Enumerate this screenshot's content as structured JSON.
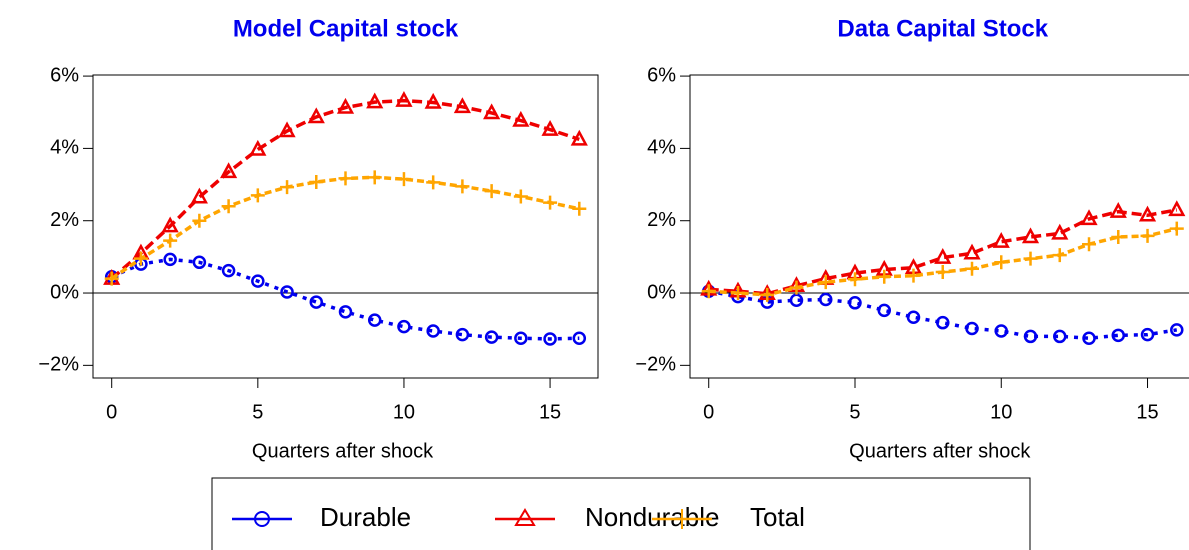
{
  "chart_data": [
    {
      "type": "line",
      "title": "Model Capital stock",
      "x_label": "Quarters after shock",
      "x": [
        0,
        1,
        2,
        3,
        4,
        5,
        6,
        7,
        8,
        9,
        10,
        11,
        12,
        13,
        14,
        15,
        16
      ],
      "xlim": [
        -0.64,
        16.64
      ],
      "xticks": [
        0,
        5,
        10,
        15
      ],
      "ylim": [
        -2.35,
        6.03
      ],
      "yticks": [
        {
          "value": -2,
          "label": "−2%"
        },
        {
          "value": 0,
          "label": "0%"
        },
        {
          "value": 2,
          "label": "2%"
        },
        {
          "value": 4,
          "label": "4%"
        },
        {
          "value": 6,
          "label": "6%"
        }
      ],
      "series": [
        {
          "name": "Durable",
          "color": "#0000ee",
          "marker": "circle",
          "values": [
            0.45,
            0.8,
            0.93,
            0.85,
            0.62,
            0.33,
            0.03,
            -0.25,
            -0.52,
            -0.75,
            -0.93,
            -1.05,
            -1.15,
            -1.22,
            -1.25,
            -1.27,
            -1.25
          ]
        },
        {
          "name": "Nondurable",
          "color": "#ee0000",
          "marker": "triangle",
          "values": [
            0.4,
            1.1,
            1.85,
            2.65,
            3.35,
            3.97,
            4.48,
            4.87,
            5.13,
            5.28,
            5.32,
            5.27,
            5.15,
            4.98,
            4.77,
            4.52,
            4.25
          ]
        },
        {
          "name": "Total",
          "color": "#ffa500",
          "marker": "plus",
          "values": [
            0.4,
            0.95,
            1.45,
            2.0,
            2.4,
            2.7,
            2.93,
            3.07,
            3.17,
            3.2,
            3.15,
            3.06,
            2.95,
            2.82,
            2.67,
            2.5,
            2.33
          ]
        }
      ]
    },
    {
      "type": "line",
      "title": "Data Capital Stock",
      "x_label": "Quarters after shock",
      "x": [
        0,
        1,
        2,
        3,
        4,
        5,
        6,
        7,
        8,
        9,
        10,
        11,
        12,
        13,
        14,
        15,
        16
      ],
      "xlim": [
        -0.64,
        16.64
      ],
      "xticks": [
        0,
        5,
        10,
        15
      ],
      "ylim": [
        -2.35,
        6.03
      ],
      "yticks": [
        {
          "value": -2,
          "label": "−2%"
        },
        {
          "value": 0,
          "label": "0%"
        },
        {
          "value": 2,
          "label": "2%"
        },
        {
          "value": 4,
          "label": "4%"
        },
        {
          "value": 6,
          "label": "6%"
        }
      ],
      "series": [
        {
          "color": "#0000ee",
          "marker": "circle",
          "values": [
            0.05,
            -0.1,
            -0.25,
            -0.2,
            -0.18,
            -0.27,
            -0.48,
            -0.67,
            -0.82,
            -0.98,
            -1.05,
            -1.2,
            -1.2,
            -1.25,
            -1.17,
            -1.15,
            -1.02
          ]
        },
        {
          "color": "#ee0000",
          "marker": "triangle",
          "values": [
            0.1,
            0.05,
            -0.02,
            0.2,
            0.4,
            0.55,
            0.65,
            0.7,
            0.98,
            1.1,
            1.42,
            1.55,
            1.65,
            2.05,
            2.25,
            2.15,
            2.3
          ]
        },
        {
          "color": "#ffa500",
          "marker": "plus",
          "values": [
            0.05,
            0.0,
            -0.05,
            0.15,
            0.3,
            0.38,
            0.45,
            0.48,
            0.58,
            0.67,
            0.85,
            0.95,
            1.05,
            1.35,
            1.55,
            1.58,
            1.78
          ]
        }
      ]
    }
  ]
}
